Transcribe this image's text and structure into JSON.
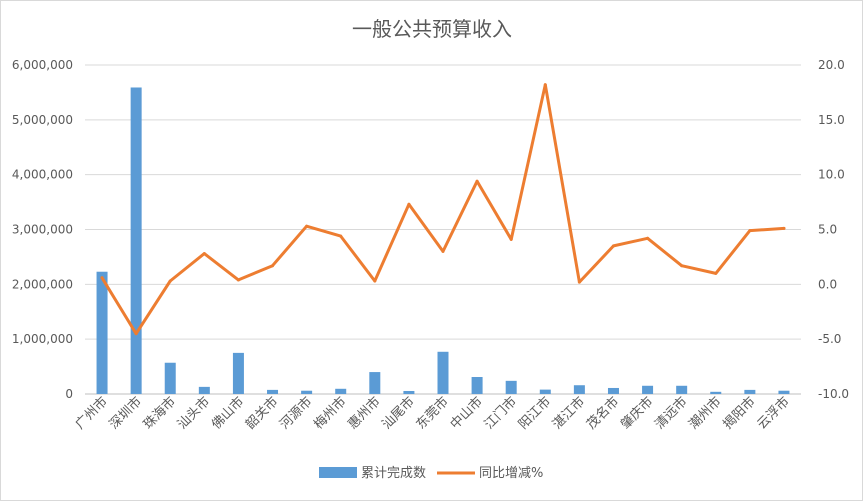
{
  "chart_data": {
    "type": "bar+line",
    "title": "一般公共预算收入",
    "categories": [
      "广州市",
      "深圳市",
      "珠海市",
      "汕头市",
      "佛山市",
      "韶关市",
      "河源市",
      "梅州市",
      "惠州市",
      "汕尾市",
      "东莞市",
      "中山市",
      "江门市",
      "阳江市",
      "湛江市",
      "茂名市",
      "肇庆市",
      "清远市",
      "潮州市",
      "揭阳市",
      "云浮市"
    ],
    "series": [
      {
        "name": "累计完成数",
        "type": "bar",
        "axis": "left",
        "color": "#5b9bd5",
        "values": [
          2230000,
          5590000,
          570000,
          130000,
          750000,
          75000,
          60000,
          95000,
          400000,
          55000,
          770000,
          310000,
          240000,
          80000,
          160000,
          110000,
          150000,
          150000,
          40000,
          75000,
          60000
        ]
      },
      {
        "name": "同比增减%",
        "type": "line",
        "axis": "right",
        "color": "#ed7d31",
        "values": [
          0.6,
          -4.5,
          0.3,
          2.8,
          0.4,
          1.7,
          5.3,
          4.4,
          0.3,
          7.3,
          3.0,
          9.4,
          4.1,
          18.2,
          0.2,
          3.5,
          4.2,
          1.7,
          1.0,
          4.9,
          5.1
        ]
      }
    ],
    "left_axis": {
      "ylim": [
        0,
        6000000
      ],
      "ticks": [
        0,
        1000000,
        2000000,
        3000000,
        4000000,
        5000000,
        6000000
      ],
      "tick_labels": [
        "0",
        "1,000,000",
        "2,000,000",
        "3,000,000",
        "4,000,000",
        "5,000,000",
        "6,000,000"
      ]
    },
    "right_axis": {
      "ylim": [
        -10,
        20
      ],
      "ticks": [
        -10,
        -5,
        0,
        5,
        10,
        15,
        20
      ],
      "tick_labels": [
        "-10.0",
        "-5.0",
        "0.0",
        "5.0",
        "10.0",
        "15.0",
        "20.0"
      ]
    },
    "grid": true,
    "legend_position": "bottom",
    "xlabel": "",
    "ylabel": ""
  }
}
